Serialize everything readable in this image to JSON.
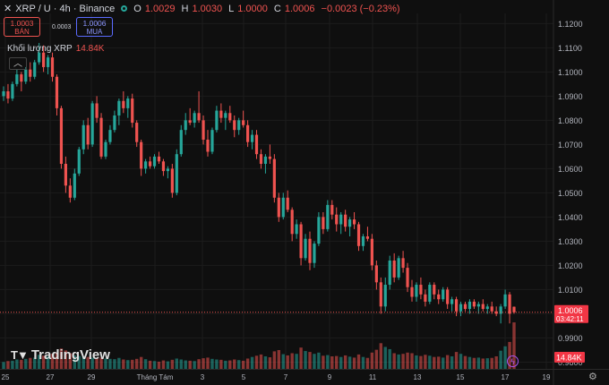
{
  "header": {
    "close_icon": "close-icon",
    "symbol_line": "XRP / U · 4h · Binance",
    "status_color": "#26a69a",
    "ohlc": [
      {
        "label": "O",
        "value": "1.0029"
      },
      {
        "label": "H",
        "value": "1.0030"
      },
      {
        "label": "L",
        "value": "1.0000"
      },
      {
        "label": "C",
        "value": "1.0006"
      }
    ],
    "change": "−0.0023 (−0.23%)"
  },
  "trade": {
    "sell_price": "1.0003",
    "sell_label": "BÁN",
    "spread": "0.0003",
    "buy_price": "1.0006",
    "buy_label": "MUA"
  },
  "volume_legend": {
    "label": "Khối lượng  XRP",
    "value": "14.84K",
    "collapse_icon": "chevron-up-icon"
  },
  "branding": {
    "logo_text": "TradingView"
  },
  "colors": {
    "up": "#26a69a",
    "down": "#ef5350",
    "price_tag": "#f23645"
  },
  "chart_data": {
    "type": "candlestick",
    "symbol": "XRP/U",
    "interval": "4h",
    "exchange": "Binance",
    "y_ticks": [
      "1.1200",
      "1.1100",
      "1.1000",
      "1.0900",
      "1.0800",
      "1.0700",
      "1.0600",
      "1.0500",
      "1.0400",
      "1.0300",
      "1.0200",
      "1.0100",
      "1.0000",
      "0.9900",
      "0.9800"
    ],
    "y_tick_values": [
      1.12,
      1.11,
      1.1,
      1.09,
      1.08,
      1.07,
      1.06,
      1.05,
      1.04,
      1.03,
      1.02,
      1.01,
      1.0,
      0.99,
      0.98
    ],
    "ylim": [
      0.9772,
      1.1242
    ],
    "x_ticks": [
      "25",
      "27",
      "29",
      "Tháng Tám",
      "3",
      "5",
      "7",
      "9",
      "11",
      "13",
      "15",
      "17",
      "19"
    ],
    "last_price": "1.0006",
    "countdown": "03:42:11",
    "last_volume": "14.84K",
    "volume_max": 30000,
    "candles": [
      {
        "o": 1.09,
        "h": 1.094,
        "l": 1.088,
        "c": 1.092,
        "v": 2200
      },
      {
        "o": 1.092,
        "h": 1.095,
        "l": 1.087,
        "c": 1.089,
        "v": 2500
      },
      {
        "o": 1.089,
        "h": 1.096,
        "l": 1.088,
        "c": 1.095,
        "v": 2600
      },
      {
        "o": 1.095,
        "h": 1.101,
        "l": 1.094,
        "c": 1.099,
        "v": 3000
      },
      {
        "o": 1.099,
        "h": 1.1,
        "l": 1.092,
        "c": 1.096,
        "v": 2900
      },
      {
        "o": 1.096,
        "h": 1.102,
        "l": 1.095,
        "c": 1.101,
        "v": 3200
      },
      {
        "o": 1.101,
        "h": 1.104,
        "l": 1.096,
        "c": 1.098,
        "v": 3500
      },
      {
        "o": 1.098,
        "h": 1.105,
        "l": 1.097,
        "c": 1.104,
        "v": 3600
      },
      {
        "o": 1.104,
        "h": 1.112,
        "l": 1.103,
        "c": 1.108,
        "v": 4500
      },
      {
        "o": 1.108,
        "h": 1.111,
        "l": 1.1,
        "c": 1.102,
        "v": 4200
      },
      {
        "o": 1.102,
        "h": 1.107,
        "l": 1.099,
        "c": 1.106,
        "v": 4000
      },
      {
        "o": 1.106,
        "h": 1.108,
        "l": 1.096,
        "c": 1.098,
        "v": 4800
      },
      {
        "o": 1.098,
        "h": 1.099,
        "l": 1.082,
        "c": 1.085,
        "v": 5200
      },
      {
        "o": 1.085,
        "h": 1.086,
        "l": 1.06,
        "c": 1.062,
        "v": 6500
      },
      {
        "o": 1.062,
        "h": 1.065,
        "l": 1.05,
        "c": 1.053,
        "v": 5900
      },
      {
        "o": 1.053,
        "h": 1.056,
        "l": 1.046,
        "c": 1.048,
        "v": 5000
      },
      {
        "o": 1.048,
        "h": 1.06,
        "l": 1.047,
        "c": 1.058,
        "v": 4300
      },
      {
        "o": 1.058,
        "h": 1.069,
        "l": 1.057,
        "c": 1.068,
        "v": 4100
      },
      {
        "o": 1.068,
        "h": 1.08,
        "l": 1.066,
        "c": 1.078,
        "v": 4000
      },
      {
        "o": 1.078,
        "h": 1.081,
        "l": 1.068,
        "c": 1.07,
        "v": 3800
      },
      {
        "o": 1.07,
        "h": 1.088,
        "l": 1.069,
        "c": 1.087,
        "v": 3600
      },
      {
        "o": 1.087,
        "h": 1.09,
        "l": 1.079,
        "c": 1.081,
        "v": 3400
      },
      {
        "o": 1.081,
        "h": 1.083,
        "l": 1.064,
        "c": 1.065,
        "v": 3600
      },
      {
        "o": 1.065,
        "h": 1.072,
        "l": 1.064,
        "c": 1.071,
        "v": 3300
      },
      {
        "o": 1.071,
        "h": 1.078,
        "l": 1.07,
        "c": 1.076,
        "v": 3200
      },
      {
        "o": 1.076,
        "h": 1.084,
        "l": 1.075,
        "c": 1.082,
        "v": 3100
      },
      {
        "o": 1.082,
        "h": 1.089,
        "l": 1.078,
        "c": 1.088,
        "v": 3500
      },
      {
        "o": 1.088,
        "h": 1.092,
        "l": 1.083,
        "c": 1.085,
        "v": 3000
      },
      {
        "o": 1.085,
        "h": 1.09,
        "l": 1.081,
        "c": 1.089,
        "v": 2800
      },
      {
        "o": 1.089,
        "h": 1.091,
        "l": 1.077,
        "c": 1.079,
        "v": 2900
      },
      {
        "o": 1.079,
        "h": 1.08,
        "l": 1.069,
        "c": 1.071,
        "v": 3200
      },
      {
        "o": 1.071,
        "h": 1.072,
        "l": 1.057,
        "c": 1.06,
        "v": 3800
      },
      {
        "o": 1.06,
        "h": 1.064,
        "l": 1.058,
        "c": 1.063,
        "v": 3100
      },
      {
        "o": 1.063,
        "h": 1.065,
        "l": 1.06,
        "c": 1.061,
        "v": 2600
      },
      {
        "o": 1.061,
        "h": 1.066,
        "l": 1.06,
        "c": 1.065,
        "v": 2500
      },
      {
        "o": 1.065,
        "h": 1.067,
        "l": 1.062,
        "c": 1.063,
        "v": 2300
      },
      {
        "o": 1.063,
        "h": 1.064,
        "l": 1.057,
        "c": 1.059,
        "v": 2700
      },
      {
        "o": 1.059,
        "h": 1.061,
        "l": 1.056,
        "c": 1.06,
        "v": 2400
      },
      {
        "o": 1.06,
        "h": 1.062,
        "l": 1.048,
        "c": 1.05,
        "v": 2900
      },
      {
        "o": 1.05,
        "h": 1.068,
        "l": 1.049,
        "c": 1.066,
        "v": 3300
      },
      {
        "o": 1.066,
        "h": 1.078,
        "l": 1.065,
        "c": 1.076,
        "v": 3000
      },
      {
        "o": 1.076,
        "h": 1.083,
        "l": 1.074,
        "c": 1.08,
        "v": 2700
      },
      {
        "o": 1.08,
        "h": 1.085,
        "l": 1.078,
        "c": 1.079,
        "v": 2600
      },
      {
        "o": 1.079,
        "h": 1.084,
        "l": 1.077,
        "c": 1.083,
        "v": 2500
      },
      {
        "o": 1.083,
        "h": 1.092,
        "l": 1.079,
        "c": 1.08,
        "v": 3100
      },
      {
        "o": 1.08,
        "h": 1.082,
        "l": 1.07,
        "c": 1.072,
        "v": 3400
      },
      {
        "o": 1.072,
        "h": 1.076,
        "l": 1.065,
        "c": 1.067,
        "v": 3600
      },
      {
        "o": 1.067,
        "h": 1.077,
        "l": 1.066,
        "c": 1.076,
        "v": 3200
      },
      {
        "o": 1.076,
        "h": 1.086,
        "l": 1.075,
        "c": 1.084,
        "v": 3000
      },
      {
        "o": 1.084,
        "h": 1.087,
        "l": 1.079,
        "c": 1.081,
        "v": 2900
      },
      {
        "o": 1.081,
        "h": 1.084,
        "l": 1.076,
        "c": 1.083,
        "v": 2600
      },
      {
        "o": 1.083,
        "h": 1.086,
        "l": 1.079,
        "c": 1.08,
        "v": 2700
      },
      {
        "o": 1.08,
        "h": 1.082,
        "l": 1.073,
        "c": 1.076,
        "v": 3000
      },
      {
        "o": 1.076,
        "h": 1.081,
        "l": 1.074,
        "c": 1.08,
        "v": 2800
      },
      {
        "o": 1.08,
        "h": 1.084,
        "l": 1.077,
        "c": 1.078,
        "v": 2600
      },
      {
        "o": 1.078,
        "h": 1.08,
        "l": 1.069,
        "c": 1.071,
        "v": 3300
      },
      {
        "o": 1.071,
        "h": 1.076,
        "l": 1.068,
        "c": 1.074,
        "v": 3800
      },
      {
        "o": 1.074,
        "h": 1.076,
        "l": 1.064,
        "c": 1.066,
        "v": 4200
      },
      {
        "o": 1.066,
        "h": 1.068,
        "l": 1.06,
        "c": 1.062,
        "v": 4600
      },
      {
        "o": 1.062,
        "h": 1.066,
        "l": 1.058,
        "c": 1.065,
        "v": 4000
      },
      {
        "o": 1.065,
        "h": 1.07,
        "l": 1.062,
        "c": 1.064,
        "v": 3700
      },
      {
        "o": 1.064,
        "h": 1.066,
        "l": 1.046,
        "c": 1.048,
        "v": 5600
      },
      {
        "o": 1.048,
        "h": 1.05,
        "l": 1.038,
        "c": 1.04,
        "v": 6000
      },
      {
        "o": 1.04,
        "h": 1.05,
        "l": 1.039,
        "c": 1.048,
        "v": 4700
      },
      {
        "o": 1.048,
        "h": 1.051,
        "l": 1.042,
        "c": 1.043,
        "v": 4300
      },
      {
        "o": 1.043,
        "h": 1.044,
        "l": 1.03,
        "c": 1.033,
        "v": 5000
      },
      {
        "o": 1.033,
        "h": 1.039,
        "l": 1.031,
        "c": 1.037,
        "v": 4800
      },
      {
        "o": 1.037,
        "h": 1.038,
        "l": 1.02,
        "c": 1.023,
        "v": 6800
      },
      {
        "o": 1.023,
        "h": 1.033,
        "l": 1.022,
        "c": 1.031,
        "v": 5700
      },
      {
        "o": 1.031,
        "h": 1.034,
        "l": 1.018,
        "c": 1.021,
        "v": 5400
      },
      {
        "o": 1.021,
        "h": 1.03,
        "l": 1.019,
        "c": 1.029,
        "v": 4800
      },
      {
        "o": 1.029,
        "h": 1.042,
        "l": 1.028,
        "c": 1.04,
        "v": 5200
      },
      {
        "o": 1.04,
        "h": 1.042,
        "l": 1.033,
        "c": 1.035,
        "v": 4200
      },
      {
        "o": 1.035,
        "h": 1.047,
        "l": 1.034,
        "c": 1.045,
        "v": 4400
      },
      {
        "o": 1.045,
        "h": 1.047,
        "l": 1.039,
        "c": 1.041,
        "v": 4000
      },
      {
        "o": 1.041,
        "h": 1.044,
        "l": 1.034,
        "c": 1.037,
        "v": 4100
      },
      {
        "o": 1.037,
        "h": 1.042,
        "l": 1.033,
        "c": 1.041,
        "v": 3800
      },
      {
        "o": 1.041,
        "h": 1.043,
        "l": 1.034,
        "c": 1.036,
        "v": 4300
      },
      {
        "o": 1.036,
        "h": 1.04,
        "l": 1.032,
        "c": 1.039,
        "v": 3900
      },
      {
        "o": 1.039,
        "h": 1.042,
        "l": 1.035,
        "c": 1.037,
        "v": 3600
      },
      {
        "o": 1.037,
        "h": 1.038,
        "l": 1.026,
        "c": 1.028,
        "v": 4600
      },
      {
        "o": 1.028,
        "h": 1.033,
        "l": 1.026,
        "c": 1.032,
        "v": 3800
      },
      {
        "o": 1.032,
        "h": 1.036,
        "l": 1.03,
        "c": 1.031,
        "v": 3500
      },
      {
        "o": 1.031,
        "h": 1.033,
        "l": 1.018,
        "c": 1.02,
        "v": 5200
      },
      {
        "o": 1.02,
        "h": 1.022,
        "l": 1.01,
        "c": 1.013,
        "v": 6100
      },
      {
        "o": 1.013,
        "h": 1.015,
        "l": 1.0,
        "c": 1.003,
        "v": 8200
      },
      {
        "o": 1.003,
        "h": 1.015,
        "l": 1.001,
        "c": 1.012,
        "v": 7000
      },
      {
        "o": 1.012,
        "h": 1.024,
        "l": 1.01,
        "c": 1.022,
        "v": 6300
      },
      {
        "o": 1.022,
        "h": 1.025,
        "l": 1.013,
        "c": 1.015,
        "v": 5000
      },
      {
        "o": 1.015,
        "h": 1.024,
        "l": 1.014,
        "c": 1.023,
        "v": 4600
      },
      {
        "o": 1.023,
        "h": 1.026,
        "l": 1.017,
        "c": 1.019,
        "v": 4800
      },
      {
        "o": 1.019,
        "h": 1.021,
        "l": 1.009,
        "c": 1.011,
        "v": 5200
      },
      {
        "o": 1.011,
        "h": 1.014,
        "l": 1.005,
        "c": 1.007,
        "v": 5000
      },
      {
        "o": 1.007,
        "h": 1.013,
        "l": 1.005,
        "c": 1.012,
        "v": 4300
      },
      {
        "o": 1.012,
        "h": 1.015,
        "l": 1.006,
        "c": 1.008,
        "v": 4100
      },
      {
        "o": 1.008,
        "h": 1.01,
        "l": 1.003,
        "c": 1.005,
        "v": 4500
      },
      {
        "o": 1.005,
        "h": 1.013,
        "l": 1.004,
        "c": 1.012,
        "v": 4200
      },
      {
        "o": 1.012,
        "h": 1.013,
        "l": 1.006,
        "c": 1.008,
        "v": 3800
      },
      {
        "o": 1.008,
        "h": 1.01,
        "l": 1.004,
        "c": 1.006,
        "v": 3900
      },
      {
        "o": 1.006,
        "h": 1.011,
        "l": 1.005,
        "c": 1.01,
        "v": 3600
      },
      {
        "o": 1.01,
        "h": 1.011,
        "l": 1.002,
        "c": 1.004,
        "v": 4400
      },
      {
        "o": 1.004,
        "h": 1.007,
        "l": 1.001,
        "c": 1.006,
        "v": 4000
      },
      {
        "o": 1.006,
        "h": 1.007,
        "l": 0.999,
        "c": 1.001,
        "v": 5400
      },
      {
        "o": 1.001,
        "h": 1.005,
        "l": 0.999,
        "c": 1.004,
        "v": 4800
      },
      {
        "o": 1.004,
        "h": 1.005,
        "l": 1.001,
        "c": 1.002,
        "v": 4100
      },
      {
        "o": 1.002,
        "h": 1.006,
        "l": 1.0,
        "c": 1.005,
        "v": 3800
      },
      {
        "o": 1.005,
        "h": 1.006,
        "l": 1.002,
        "c": 1.003,
        "v": 3500
      },
      {
        "o": 1.003,
        "h": 1.005,
        "l": 1.0,
        "c": 1.004,
        "v": 3600
      },
      {
        "o": 1.004,
        "h": 1.006,
        "l": 1.001,
        "c": 1.002,
        "v": 3300
      },
      {
        "o": 1.002,
        "h": 1.004,
        "l": 1.0,
        "c": 1.003,
        "v": 3400
      },
      {
        "o": 1.003,
        "h": 1.005,
        "l": 1.0,
        "c": 1.001,
        "v": 3500
      },
      {
        "o": 1.001,
        "h": 1.003,
        "l": 0.999,
        "c": 1.0,
        "v": 4000
      },
      {
        "o": 1.0,
        "h": 1.004,
        "l": 0.996,
        "c": 1.003,
        "v": 5800
      },
      {
        "o": 1.003,
        "h": 1.01,
        "l": 1.002,
        "c": 1.008,
        "v": 7200
      },
      {
        "o": 1.008,
        "h": 1.009,
        "l": 0.996,
        "c": 1.0,
        "v": 8600
      },
      {
        "o": 1.0029,
        "h": 1.003,
        "l": 1.0,
        "c": 1.0006,
        "v": 14840
      }
    ]
  }
}
